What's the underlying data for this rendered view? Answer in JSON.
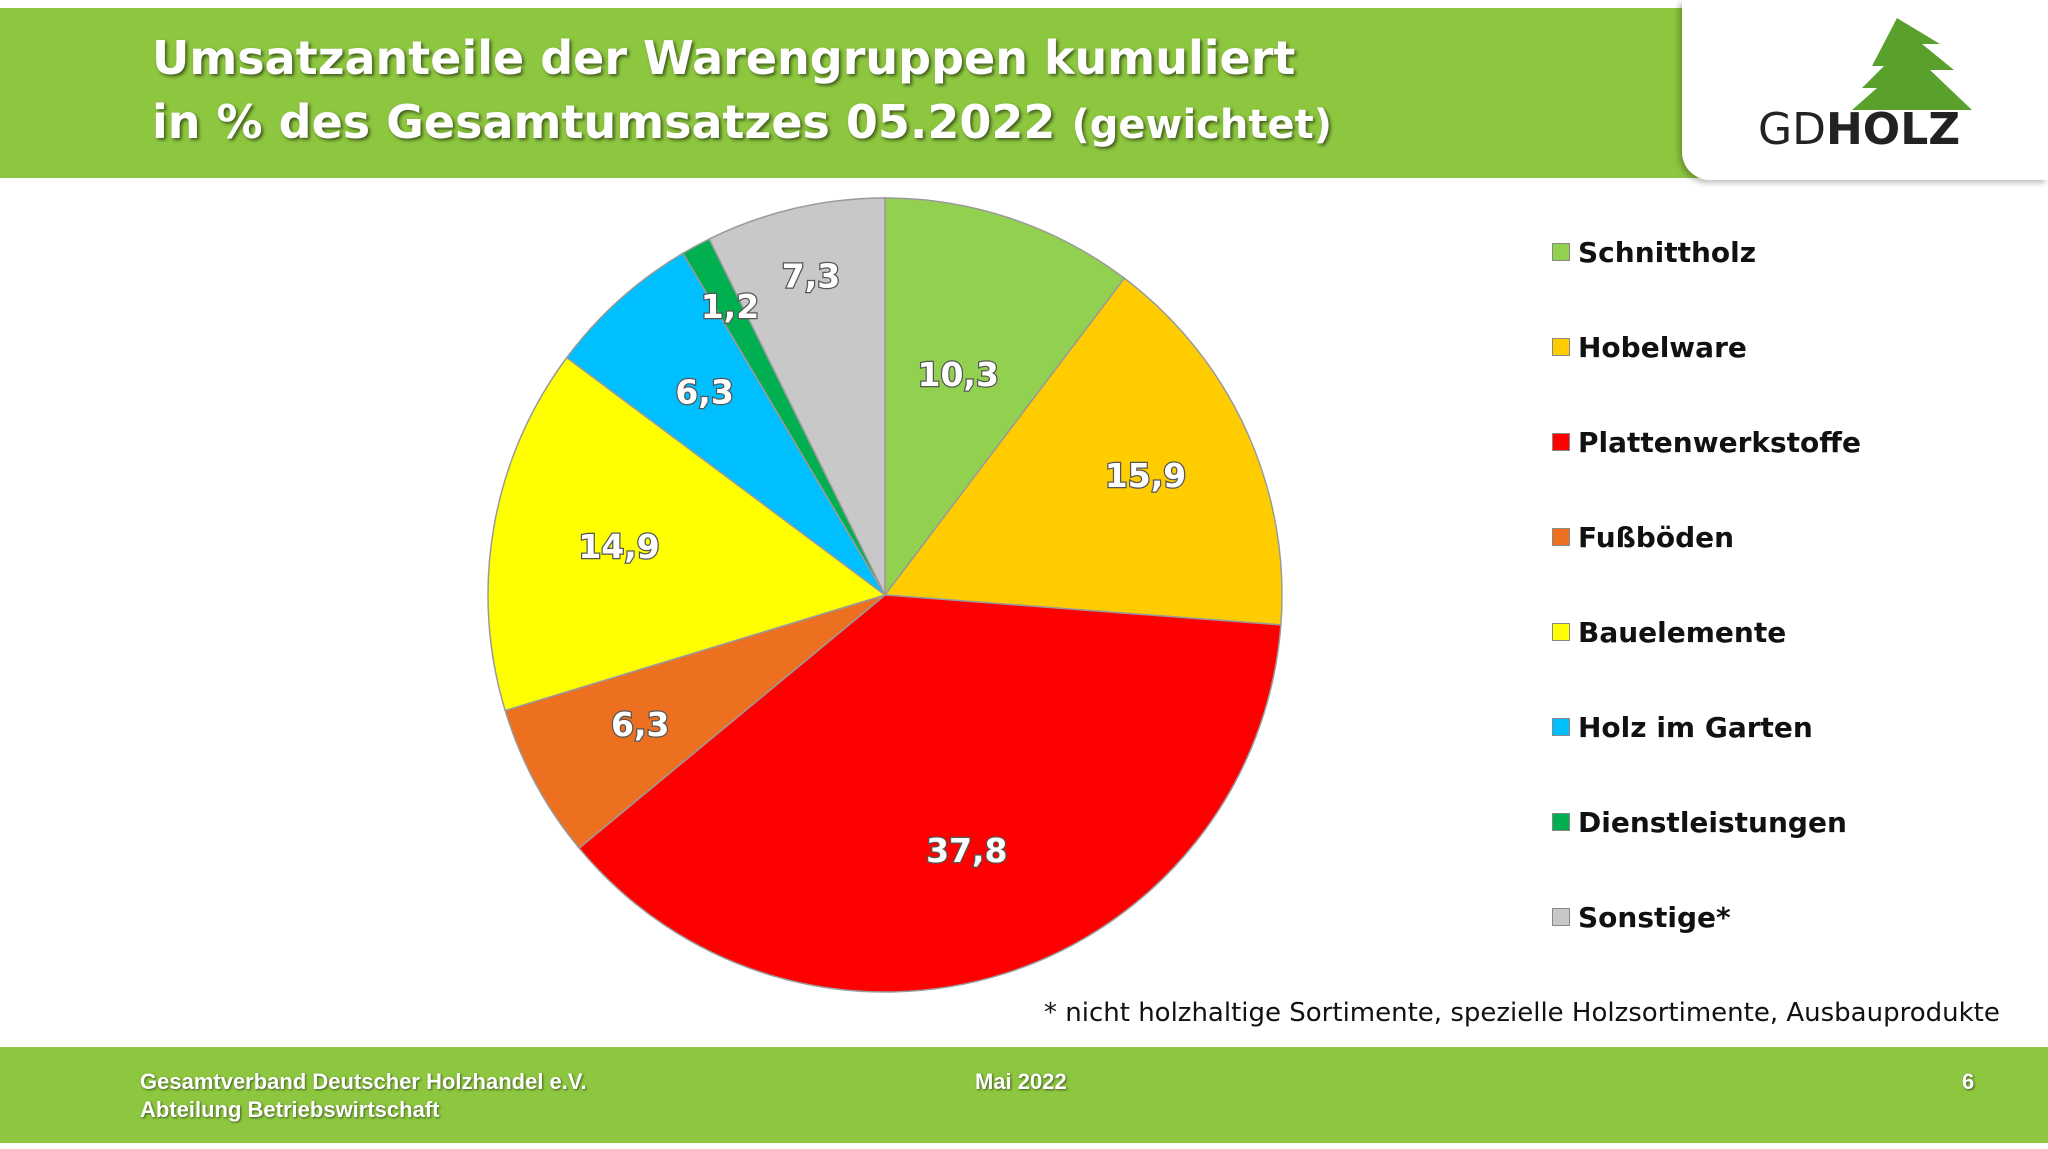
{
  "header": {
    "title_line1": "Umsatzanteile der Warengruppen kumuliert",
    "title_line2": "in % des Gesamtumsatzes 05.2022",
    "title_suffix": "(gewichtet)"
  },
  "logo": {
    "text_gd": "GD",
    "text_holz": "HOLZ",
    "icon": "tree-icon"
  },
  "colors": {
    "header_green": "#8dc63f",
    "Schnittholz": "#92d050",
    "Hobelware": "#ffcc00",
    "Plattenwerkstoffe": "#ff0000",
    "Fussboeden": "#ed7020",
    "Bauelemente": "#ffff00",
    "Holz im Garten": "#00bfff",
    "Dienstleistungen": "#00b050",
    "Sonstige": "#c8c8c8"
  },
  "chart_data": {
    "type": "pie",
    "start": "12 o'clock, clockwise",
    "legend_position": "right",
    "categories": [
      "Schnittholz",
      "Hobelware",
      "Plattenwerkstoffe",
      "Fußböden",
      "Bauelemente",
      "Holz im Garten",
      "Dienstleistungen",
      "Sonstige*"
    ],
    "values": [
      10.3,
      15.9,
      37.8,
      6.3,
      14.9,
      6.3,
      1.2,
      7.3
    ],
    "value_labels": [
      "10,3",
      "15,9",
      "37,8",
      "6,3",
      "14,9",
      "6,3",
      "1,2",
      "7,3"
    ],
    "colors": [
      "#92d050",
      "#ffcc00",
      "#ff0000",
      "#ed7020",
      "#ffff00",
      "#00bfff",
      "#00b050",
      "#c8c8c8"
    ]
  },
  "footnote": "* nicht holzhaltige Sortimente, spezielle Holzsortimente, Ausbauprodukte",
  "footer": {
    "org_line1": "Gesamtverband Deutscher Holzhandel e.V.",
    "org_line2": "Abteilung Betriebswirtschaft",
    "date": "Mai 2022",
    "page": "6"
  }
}
